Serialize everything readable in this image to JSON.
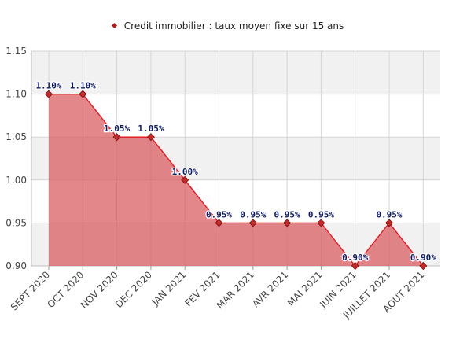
{
  "chart_data": {
    "type": "area",
    "title": "",
    "xlabel": "",
    "ylabel": "",
    "categories": [
      "SEPT 2020",
      "OCT 2020",
      "NOV 2020",
      "DEC 2020",
      "JAN 2021",
      "FEV 2021",
      "MAR 2021",
      "AVR 2021",
      "MAI 2021",
      "JUIN 2021",
      "JUILLET 2021",
      "AOUT 2021"
    ],
    "series": [
      {
        "name": "Credit immobilier : taux moyen fixe sur 15 ans",
        "values": [
          1.1,
          1.1,
          1.05,
          1.05,
          1.0,
          0.95,
          0.95,
          0.95,
          0.95,
          0.9,
          0.95,
          0.9
        ],
        "labels": [
          "1.10%",
          "1.10%",
          "1.05%",
          "1.05%",
          "1.00%",
          "0.95%",
          "0.95%",
          "0.95%",
          "0.95%",
          "0.90%",
          "0.95%",
          "0.90%"
        ]
      }
    ],
    "yticks": [
      "0.90",
      "0.95",
      "1.00",
      "1.05",
      "1.10",
      "1.15"
    ],
    "ylim": [
      0.9,
      1.15
    ],
    "grid": true,
    "legend_position": "top-center",
    "colors": {
      "line": "#e8101a",
      "fill": "#d9545a",
      "marker": "#c62828",
      "band": "#f1f1f1",
      "label": "#0b1a6b"
    }
  }
}
